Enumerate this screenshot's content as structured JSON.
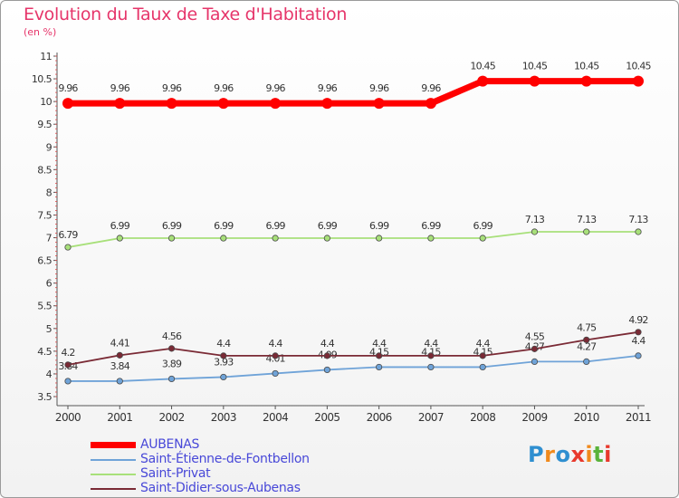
{
  "chart_data": {
    "type": "line",
    "title": "Evolution du Taux de Taxe d'Habitation",
    "subtitle": "(en %)",
    "categories": [
      "2000",
      "2001",
      "2002",
      "2003",
      "2004",
      "2005",
      "2006",
      "2007",
      "2008",
      "2009",
      "2010",
      "2011"
    ],
    "ylim": [
      3.5,
      11
    ],
    "yticks": [
      "3.5",
      "4",
      "4.5",
      "5",
      "5.5",
      "6",
      "6.5",
      "7",
      "7.5",
      "8",
      "8.5",
      "9",
      "9.5",
      "10",
      "10.5",
      "11"
    ],
    "grid": false,
    "legend_position": "bottom-left",
    "series": [
      {
        "name": "AUBENAS",
        "color": "#ff0000",
        "values": [
          9.96,
          9.96,
          9.96,
          9.96,
          9.96,
          9.96,
          9.96,
          9.96,
          10.45,
          10.45,
          10.45,
          10.45
        ],
        "labels": [
          "9.96",
          "9.96",
          "9.96",
          "9.96",
          "9.96",
          "9.96",
          "9.96",
          "9.96",
          "10.45",
          "10.45",
          "10.45",
          "10.45"
        ]
      },
      {
        "name": "Saint-Étienne-de-Fontbellon",
        "color": "#6fa3d8",
        "values": [
          3.84,
          3.84,
          3.89,
          3.93,
          4.01,
          4.09,
          4.15,
          4.15,
          4.15,
          4.27,
          4.27,
          4.4
        ],
        "labels": [
          "3.84",
          "3.84",
          "3.89",
          "3.93",
          "4.01",
          "4.09",
          "4.15",
          "4.15",
          "4.15",
          "4.27",
          "4.27",
          "4.4"
        ]
      },
      {
        "name": "Saint-Privat",
        "color": "#a8e07a",
        "values": [
          6.79,
          6.99,
          6.99,
          6.99,
          6.99,
          6.99,
          6.99,
          6.99,
          6.99,
          7.13,
          7.13,
          7.13
        ],
        "labels": [
          "6.79",
          "6.99",
          "6.99",
          "6.99",
          "6.99",
          "6.99",
          "6.99",
          "6.99",
          "6.99",
          "7.13",
          "7.13",
          "7.13"
        ]
      },
      {
        "name": "Saint-Didier-sous-Aubenas",
        "color": "#7a2a35",
        "values": [
          4.2,
          4.41,
          4.56,
          4.4,
          4.4,
          4.4,
          4.4,
          4.4,
          4.4,
          4.55,
          4.75,
          4.92
        ],
        "labels": [
          "4.2",
          "4.41",
          "4.56",
          "4.4",
          "4.4",
          "4.4",
          "4.4",
          "4.4",
          "4.4",
          "4.55",
          "4.75",
          "4.92"
        ]
      }
    ]
  },
  "logo": {
    "letters": [
      "P",
      "r",
      "o",
      "x",
      "i",
      "t",
      "i"
    ],
    "colors": [
      "#2f8fd0",
      "#f08a1c",
      "#2f8fd0",
      "#e8392c",
      "#f08a1c",
      "#5ab33b",
      "#e8392c"
    ]
  }
}
